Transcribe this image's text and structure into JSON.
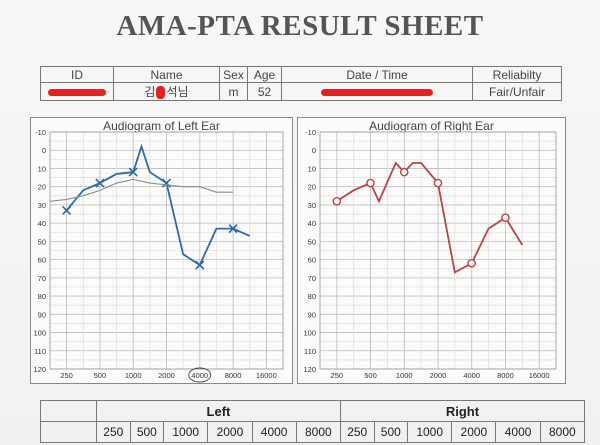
{
  "title": "AMA-PTA RESULT SHEET",
  "info": {
    "headers": [
      "ID",
      "Name",
      "Sex",
      "Age",
      "Date / Time",
      "Reliabilty"
    ],
    "values": {
      "name_partial_1": "김",
      "name_partial_2": "석님",
      "sex": "m",
      "age": "52",
      "reliability": "Fair/Unfair"
    }
  },
  "redaction_color": "#e8201e",
  "chart_data": [
    {
      "type": "line",
      "title": "Audiogram of Left Ear",
      "x_ticks": [
        "250",
        "500",
        "1000",
        "2000",
        "4000",
        "8000",
        "16000"
      ],
      "y_ticks": [
        "-10",
        "0",
        "10",
        "20",
        "30",
        "40",
        "50",
        "60",
        "70",
        "80",
        "90",
        "100",
        "110",
        "120"
      ],
      "ylim": [
        -10,
        120
      ],
      "y_inverted": true,
      "series": [
        {
          "color": "#2f6aa8",
          "x": [
            250,
            353,
            500,
            707,
            1000,
            1189,
            1414,
            2000,
            2828,
            4000,
            5657,
            8000,
            11314
          ],
          "y": [
            33,
            22,
            18,
            13,
            12,
            -2,
            12,
            18,
            57,
            63,
            43,
            43,
            47
          ],
          "marker_points": [
            {
              "x": 250,
              "y": 33
            },
            {
              "x": 500,
              "y": 18
            },
            {
              "x": 1000,
              "y": 12
            },
            {
              "x": 2000,
              "y": 18
            },
            {
              "x": 4000,
              "y": 63
            },
            {
              "x": 8000,
              "y": 43
            }
          ],
          "marker": "x"
        },
        {
          "color": "#8a8a8a",
          "x": [
            177,
            250,
            353,
            500,
            707,
            1000,
            1414,
            2000,
            2828,
            4000,
            5657,
            8000
          ],
          "y": [
            28,
            27,
            25,
            22,
            18,
            16,
            18,
            19,
            20,
            20,
            23,
            23
          ]
        }
      ]
    },
    {
      "type": "line",
      "title": "Audiogram of Right Ear",
      "x_ticks": [
        "250",
        "500",
        "1000",
        "2000",
        "4000",
        "8000",
        "16000"
      ],
      "y_ticks": [
        "-10",
        "0",
        "10",
        "20",
        "30",
        "40",
        "50",
        "60",
        "70",
        "80",
        "90",
        "100",
        "110",
        "120"
      ],
      "ylim": [
        -10,
        120
      ],
      "y_inverted": true,
      "series": [
        {
          "color": "#b8454a",
          "x": [
            250,
            353,
            500,
            594,
            840,
            1000,
            1189,
            1414,
            2000,
            2828,
            4000,
            5657,
            8000,
            11314
          ],
          "y": [
            28,
            22,
            18,
            28,
            7,
            12,
            7,
            7,
            18,
            67,
            62,
            43,
            37,
            52
          ],
          "marker_points": [
            {
              "x": 250,
              "y": 28
            },
            {
              "x": 500,
              "y": 18
            },
            {
              "x": 1000,
              "y": 12
            },
            {
              "x": 2000,
              "y": 18
            },
            {
              "x": 4000,
              "y": 62
            },
            {
              "x": 8000,
              "y": 37
            }
          ],
          "marker": "o"
        }
      ]
    }
  ],
  "bottom_table": {
    "left_label": "Left",
    "right_label": "Right",
    "freqs": [
      "250",
      "500",
      "1000",
      "2000",
      "4000",
      "8000"
    ]
  }
}
